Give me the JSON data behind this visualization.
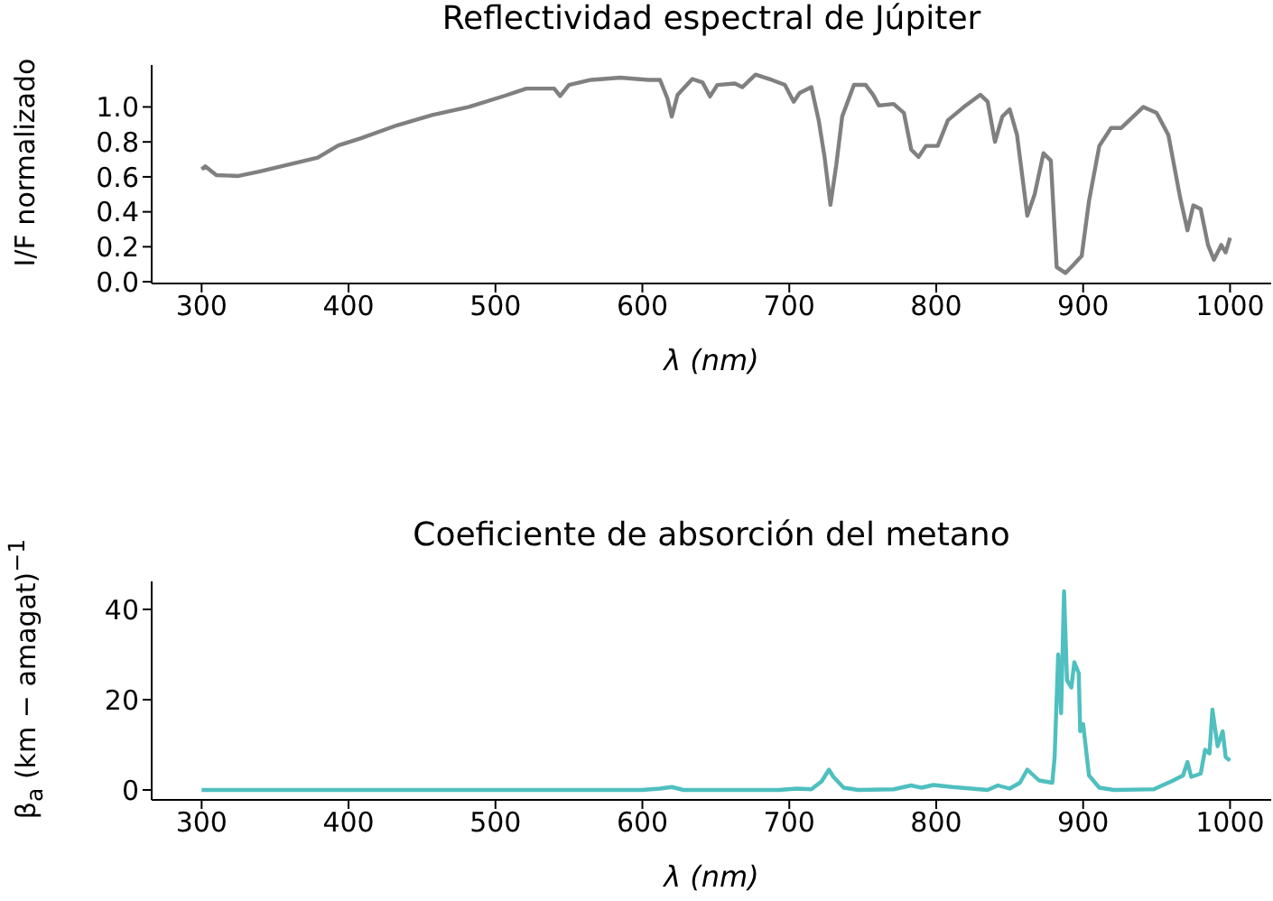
{
  "chart_data": [
    {
      "type": "line",
      "title": "Reflectividad espectral de Júpiter",
      "xlabel": "λ (nm)",
      "ylabel": "I/F normalizado",
      "x": [
        300,
        302.5,
        310,
        325,
        339,
        359,
        379,
        393,
        408,
        433,
        457,
        482,
        506,
        521,
        540,
        544,
        550,
        565,
        585,
        604,
        612,
        617,
        620,
        624,
        634,
        641,
        646,
        651,
        663,
        668,
        677,
        688,
        697,
        703,
        707,
        715,
        720,
        724,
        728,
        732,
        736,
        744,
        752,
        757,
        761,
        771,
        778,
        783,
        788,
        793,
        801,
        808,
        820,
        830,
        835,
        840,
        845,
        850,
        855,
        862,
        867,
        873,
        878,
        882,
        888,
        892,
        899,
        904,
        911,
        919,
        926,
        941,
        950,
        958,
        966,
        971,
        975,
        980,
        985,
        989,
        994,
        997,
        1000
      ],
      "series": [
        {
          "color": "#808080",
          "values": [
            0.643,
            0.66,
            0.61,
            0.605,
            0.63,
            0.67,
            0.71,
            0.78,
            0.82,
            0.895,
            0.954,
            1.0,
            1.063,
            1.105,
            1.105,
            1.063,
            1.126,
            1.155,
            1.168,
            1.155,
            1.155,
            1.05,
            0.945,
            1.07,
            1.16,
            1.14,
            1.06,
            1.126,
            1.134,
            1.113,
            1.185,
            1.155,
            1.126,
            1.03,
            1.08,
            1.113,
            0.924,
            0.714,
            0.44,
            0.67,
            0.945,
            1.126,
            1.126,
            1.07,
            1.008,
            1.017,
            0.966,
            0.756,
            0.714,
            0.777,
            0.777,
            0.924,
            1.008,
            1.07,
            1.03,
            0.8,
            0.945,
            0.987,
            0.84,
            0.378,
            0.5,
            0.735,
            0.693,
            0.084,
            0.05,
            0.084,
            0.147,
            0.462,
            0.777,
            0.88,
            0.88,
            1.0,
            0.966,
            0.84,
            0.483,
            0.294,
            0.437,
            0.416,
            0.21,
            0.126,
            0.21,
            0.168,
            0.252
          ]
        }
      ],
      "xlim": [
        266,
        1028
      ],
      "ylim": [
        -0.01,
        1.24
      ],
      "xticks": [
        300,
        400,
        500,
        600,
        700,
        800,
        900,
        1000
      ],
      "yticks": [
        {
          "value": 0,
          "label": "0.0"
        },
        0.2,
        0.4,
        0.6,
        0.8,
        {
          "value": 1,
          "label": "1.0"
        }
      ],
      "grid": false,
      "legend": false
    },
    {
      "type": "line",
      "title": "Coeficiente de absorción del metano",
      "xlabel": "λ (nm)",
      "ylabel": "β$_{a}$ (km − amagat)$^{−1}$",
      "x": [
        300,
        599.5,
        612,
        620,
        628,
        693,
        705,
        715,
        722,
        727,
        730,
        737,
        747,
        771,
        783,
        790,
        798,
        811,
        835,
        842,
        850,
        857,
        862,
        870,
        879,
        880.6,
        883,
        885,
        887,
        889,
        892,
        894,
        897,
        898,
        900,
        904,
        911,
        921,
        948,
        960,
        968,
        971,
        973.6,
        980,
        983,
        986,
        988,
        991.5,
        995,
        997,
        1000
      ],
      "series": [
        {
          "color": "#4fbfbf",
          "values": [
            0,
            0,
            0.3,
            0.65,
            0,
            0,
            0.3,
            0.15,
            1.9,
            4.5,
            2.9,
            0.5,
            0,
            0.15,
            1,
            0.5,
            1.1,
            0.65,
            0,
            1,
            0.3,
            1.6,
            4.5,
            2.1,
            1.6,
            7.3,
            30,
            17,
            44,
            24.3,
            22.7,
            28.3,
            25.9,
            13,
            14.6,
            3.2,
            0.5,
            0,
            0.15,
            1.9,
            3.2,
            6.2,
            2.9,
            3.6,
            8.9,
            8.1,
            17.8,
            9.7,
            13,
            7.3,
            6.5
          ]
        }
      ],
      "xlim": [
        266,
        1028
      ],
      "ylim": [
        -2.2,
        46.2
      ],
      "xticks": [
        300,
        400,
        500,
        600,
        700,
        800,
        900,
        1000
      ],
      "yticks": [
        0,
        20,
        40
      ],
      "grid": false,
      "legend": false
    }
  ]
}
